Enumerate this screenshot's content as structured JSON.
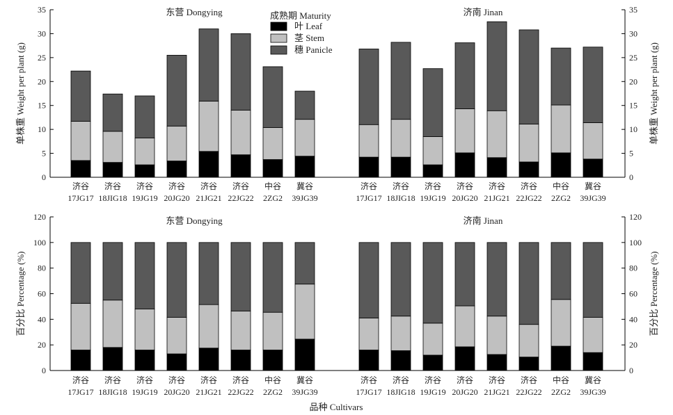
{
  "figure": {
    "xlabel": "品种 Cultivars",
    "legend": {
      "title": "成熟期 Maturity",
      "items": [
        {
          "label": "叶 Leaf",
          "color": "#000000"
        },
        {
          "label": "茎 Stem",
          "color": "#c0c0c0"
        },
        {
          "label": "穗 Panicle",
          "color": "#595959"
        }
      ]
    }
  },
  "chart_data": [
    {
      "type": "bar",
      "stacked": true,
      "panel": "top",
      "ylabel_left": "单株重 Weight per plant (g)",
      "ylabel_right": "单株重 Weight per plant (g)",
      "ylim": [
        0,
        35
      ],
      "yticks": [
        0,
        5,
        10,
        15,
        20,
        25,
        30,
        35
      ],
      "groups": [
        {
          "title": "东营 Dongying",
          "categories": [
            {
              "line1": "济谷",
              "line2": "17JG17"
            },
            {
              "line1": "济谷",
              "line2": "18JIG18"
            },
            {
              "line1": "济谷",
              "line2": "19JG19"
            },
            {
              "line1": "济谷",
              "line2": "20JG20"
            },
            {
              "line1": "济谷",
              "line2": "21JG21"
            },
            {
              "line1": "济谷",
              "line2": "22JG22"
            },
            {
              "line1": "中谷",
              "line2": "2ZG2"
            },
            {
              "line1": "冀谷",
              "line2": "39JG39"
            }
          ],
          "series": [
            {
              "name": "叶 Leaf",
              "values": [
                3.5,
                3.1,
                2.6,
                3.4,
                5.4,
                4.7,
                3.7,
                4.4
              ]
            },
            {
              "name": "茎 Stem",
              "values": [
                8.2,
                6.5,
                5.6,
                7.3,
                10.5,
                9.3,
                6.7,
                7.7
              ]
            },
            {
              "name": "穗 Panicle",
              "values": [
                10.5,
                7.8,
                8.8,
                14.8,
                15.1,
                16.0,
                12.7,
                5.9
              ]
            }
          ]
        },
        {
          "title": "济南 Jinan",
          "categories": [
            {
              "line1": "济谷",
              "line2": "17JG17"
            },
            {
              "line1": "济谷",
              "line2": "18JIG18"
            },
            {
              "line1": "济谷",
              "line2": "19JG19"
            },
            {
              "line1": "济谷",
              "line2": "20JG20"
            },
            {
              "line1": "济谷",
              "line2": "21JG21"
            },
            {
              "line1": "济谷",
              "line2": "22JG22"
            },
            {
              "line1": "中谷",
              "line2": "2ZG2"
            },
            {
              "line1": "冀谷",
              "line2": "39JG39"
            }
          ],
          "series": [
            {
              "name": "叶 Leaf",
              "values": [
                4.2,
                4.2,
                2.6,
                5.1,
                4.1,
                3.2,
                5.1,
                3.8
              ]
            },
            {
              "name": "茎 Stem",
              "values": [
                6.8,
                7.9,
                5.9,
                9.2,
                9.8,
                7.9,
                10.0,
                7.6
              ]
            },
            {
              "name": "穗 Panicle",
              "values": [
                15.8,
                16.1,
                14.2,
                13.8,
                18.6,
                19.7,
                11.9,
                15.8
              ]
            }
          ]
        }
      ]
    },
    {
      "type": "bar",
      "stacked": true,
      "panel": "bottom",
      "ylabel_left": "百分比 Percentage (%)",
      "ylabel_right": "百分比 Percentage (%)",
      "ylim": [
        0,
        120
      ],
      "yticks": [
        0,
        20,
        40,
        60,
        80,
        100,
        120
      ],
      "groups": [
        {
          "title": "东营 Dongying",
          "categories": [
            {
              "line1": "济谷",
              "line2": "17JG17"
            },
            {
              "line1": "济谷",
              "line2": "18JIG18"
            },
            {
              "line1": "济谷",
              "line2": "19JG19"
            },
            {
              "line1": "济谷",
              "line2": "20JG20"
            },
            {
              "line1": "济谷",
              "line2": "21JG21"
            },
            {
              "line1": "济谷",
              "line2": "22JG22"
            },
            {
              "line1": "中谷",
              "line2": "2ZG2"
            },
            {
              "line1": "冀谷",
              "line2": "39JG39"
            }
          ],
          "series": [
            {
              "name": "叶 Leaf",
              "values": [
                16,
                18,
                16,
                13,
                17.5,
                16,
                16,
                24.5
              ]
            },
            {
              "name": "茎 Stem",
              "values": [
                36.5,
                37,
                32,
                28.5,
                34,
                30.5,
                29.5,
                43
              ]
            },
            {
              "name": "穗 Panicle",
              "values": [
                47.5,
                45,
                52,
                58.5,
                48.5,
                53.5,
                54.5,
                32.5
              ]
            }
          ]
        },
        {
          "title": "济南 Jinan",
          "categories": [
            {
              "line1": "济谷",
              "line2": "17JG17"
            },
            {
              "line1": "济谷",
              "line2": "18JIG18"
            },
            {
              "line1": "济谷",
              "line2": "19JG19"
            },
            {
              "line1": "济谷",
              "line2": "20JG20"
            },
            {
              "line1": "济谷",
              "line2": "21JG21"
            },
            {
              "line1": "济谷",
              "line2": "22JG22"
            },
            {
              "line1": "中谷",
              "line2": "2ZG2"
            },
            {
              "line1": "冀谷",
              "line2": "39JG39"
            }
          ],
          "series": [
            {
              "name": "叶 Leaf",
              "values": [
                16,
                15.5,
                12,
                18.5,
                12.5,
                10.5,
                19,
                14
              ]
            },
            {
              "name": "茎 Stem",
              "values": [
                25,
                27,
                25,
                32,
                30,
                25.5,
                36.5,
                27.5
              ]
            },
            {
              "name": "穗 Panicle",
              "values": [
                59,
                57.5,
                63,
                49.5,
                57.5,
                64,
                44.5,
                58.5
              ]
            }
          ]
        }
      ]
    }
  ]
}
